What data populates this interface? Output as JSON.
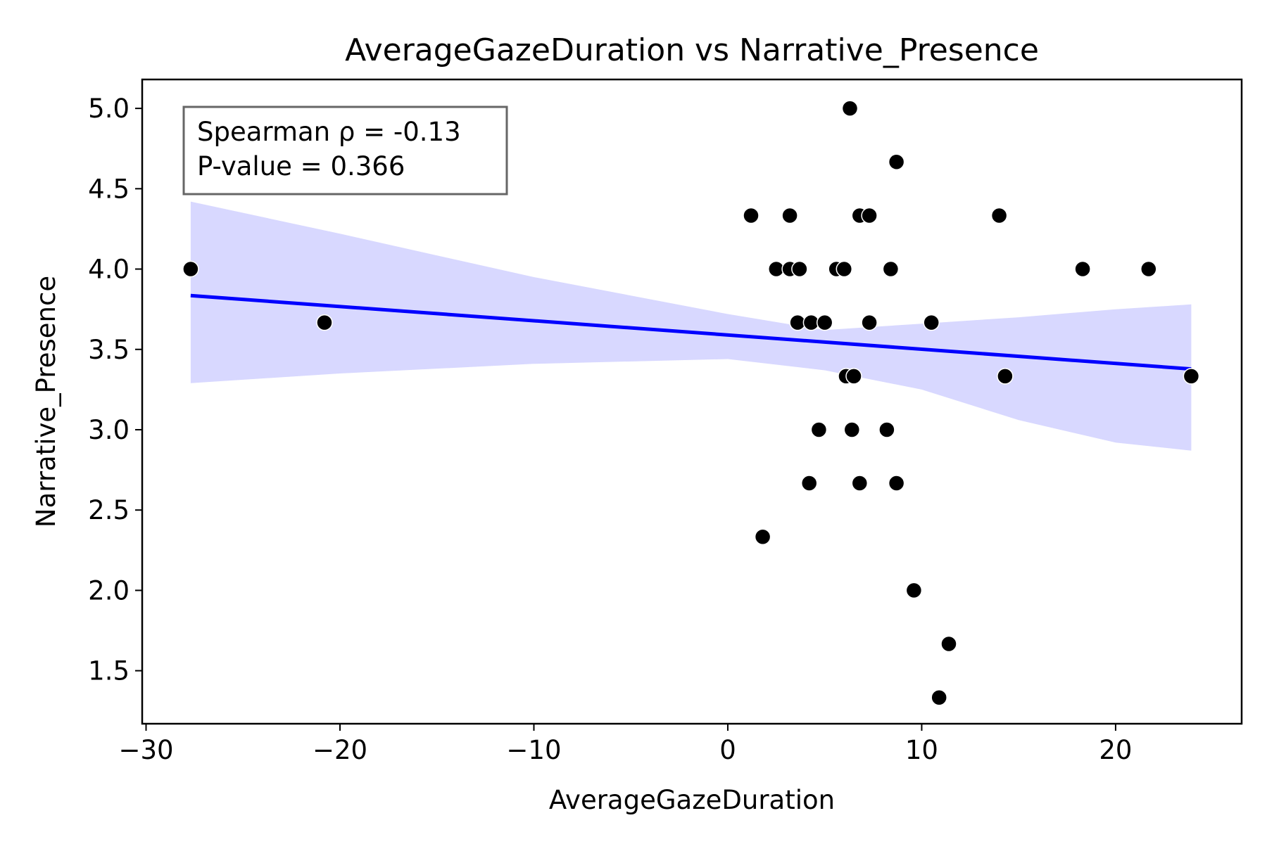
{
  "chart_data": {
    "type": "scatter",
    "title": "AverageGazeDuration vs Narrative_Presence",
    "xlabel": "AverageGazeDuration",
    "ylabel": "Narrative_Presence",
    "xlim": [
      -30.2,
      26.5
    ],
    "ylim": [
      1.17,
      5.18
    ],
    "xticks": [
      -30,
      -20,
      -10,
      0,
      10,
      20
    ],
    "xtick_labels": [
      "−30",
      "−20",
      "−10",
      "0",
      "10",
      "20"
    ],
    "yticks": [
      1.5,
      2.0,
      2.5,
      3.0,
      3.5,
      4.0,
      4.5,
      5.0
    ],
    "ytick_labels": [
      "1.5",
      "2.0",
      "2.5",
      "3.0",
      "3.5",
      "4.0",
      "4.5",
      "5.0"
    ],
    "grid": false,
    "points": [
      {
        "x": -27.7,
        "y": 4.0
      },
      {
        "x": -20.8,
        "y": 3.667
      },
      {
        "x": 1.2,
        "y": 4.333
      },
      {
        "x": 3.2,
        "y": 4.333
      },
      {
        "x": 6.8,
        "y": 4.333
      },
      {
        "x": 7.3,
        "y": 4.333
      },
      {
        "x": 14.0,
        "y": 4.333
      },
      {
        "x": 6.3,
        "y": 5.0
      },
      {
        "x": 8.7,
        "y": 4.667
      },
      {
        "x": 2.5,
        "y": 4.0
      },
      {
        "x": 3.2,
        "y": 4.0
      },
      {
        "x": 3.7,
        "y": 4.0
      },
      {
        "x": 5.6,
        "y": 4.0
      },
      {
        "x": 6.0,
        "y": 4.0
      },
      {
        "x": 8.4,
        "y": 4.0
      },
      {
        "x": 18.3,
        "y": 4.0
      },
      {
        "x": 21.7,
        "y": 4.0
      },
      {
        "x": 3.6,
        "y": 3.667
      },
      {
        "x": 4.3,
        "y": 3.667
      },
      {
        "x": 5.0,
        "y": 3.667
      },
      {
        "x": 7.3,
        "y": 3.667
      },
      {
        "x": 10.5,
        "y": 3.667
      },
      {
        "x": 6.1,
        "y": 3.333
      },
      {
        "x": 6.5,
        "y": 3.333
      },
      {
        "x": 14.3,
        "y": 3.333
      },
      {
        "x": 23.9,
        "y": 3.333
      },
      {
        "x": 4.7,
        "y": 3.0
      },
      {
        "x": 6.4,
        "y": 3.0
      },
      {
        "x": 8.2,
        "y": 3.0
      },
      {
        "x": 4.2,
        "y": 2.667
      },
      {
        "x": 6.8,
        "y": 2.667
      },
      {
        "x": 8.7,
        "y": 2.667
      },
      {
        "x": 1.8,
        "y": 2.333
      },
      {
        "x": 9.6,
        "y": 2.0
      },
      {
        "x": 11.4,
        "y": 1.667
      },
      {
        "x": 10.9,
        "y": 1.333
      }
    ],
    "regression_line": {
      "x": [
        -27.7,
        23.9
      ],
      "y": [
        3.835,
        3.378
      ],
      "color": "#0000ff"
    },
    "confidence_band": {
      "color": "#d8d8ff",
      "x": [
        -27.7,
        -20,
        -10,
        0,
        5,
        10,
        15,
        20,
        23.9
      ],
      "upper": [
        4.42,
        4.22,
        3.95,
        3.72,
        3.62,
        3.66,
        3.7,
        3.75,
        3.78
      ],
      "lower": [
        3.29,
        3.35,
        3.41,
        3.44,
        3.37,
        3.25,
        3.06,
        2.92,
        2.87
      ]
    },
    "point_color": "#000000",
    "annotation": {
      "lines": [
        "Spearman ρ = -0.13",
        "P-value = 0.366"
      ],
      "placement": "top-left"
    }
  }
}
